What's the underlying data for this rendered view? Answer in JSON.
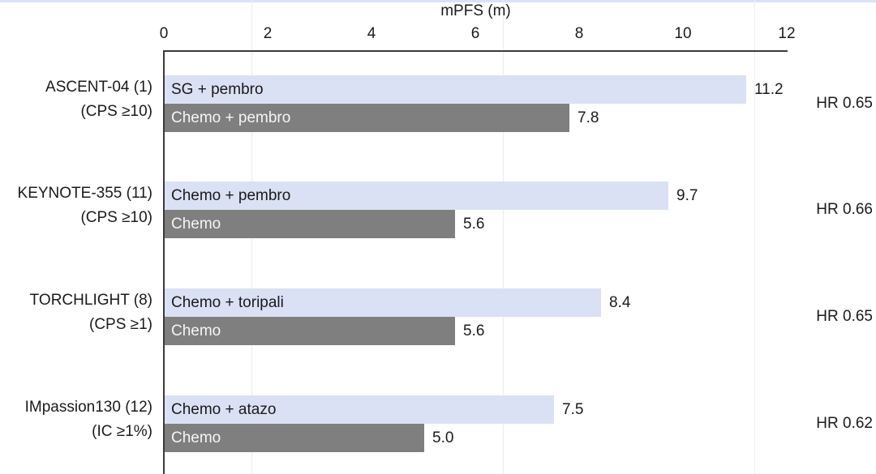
{
  "figure": {
    "title": "mPFS (m)"
  },
  "chart_data": {
    "type": "bar",
    "orientation": "horizontal",
    "title": "mPFS (m)",
    "xlabel": "mPFS (m)",
    "xlim": [
      0,
      12
    ],
    "ticks": [
      0,
      2,
      4,
      6,
      8,
      10,
      12
    ],
    "grid": "off",
    "legend": "none",
    "bar_colors": {
      "highlight": "#dbe1f4",
      "comparator": "#7f7f7f"
    },
    "groups": [
      {
        "trial": "ASCENT-04 (1)",
        "population": "(CPS ≥10)",
        "hr_label": "HR 0.65",
        "bars": [
          {
            "label": "SG + pembro",
            "value": 11.2,
            "value_label": "11.2",
            "role": "highlight"
          },
          {
            "label": "Chemo + pembro",
            "value": 7.8,
            "value_label": "7.8",
            "role": "comparator"
          }
        ]
      },
      {
        "trial": "KEYNOTE-355 (11)",
        "population": "(CPS ≥10)",
        "hr_label": "HR 0.66",
        "bars": [
          {
            "label": "Chemo + pembro",
            "value": 9.7,
            "value_label": "9.7",
            "role": "highlight"
          },
          {
            "label": "Chemo",
            "value": 5.6,
            "value_label": "5.6",
            "role": "comparator"
          }
        ]
      },
      {
        "trial": "TORCHLIGHT (8)",
        "population": "(CPS ≥1)",
        "hr_label": "HR 0.65",
        "bars": [
          {
            "label": "Chemo + toripali",
            "value": 8.4,
            "value_label": "8.4",
            "role": "highlight"
          },
          {
            "label": "Chemo",
            "value": 5.6,
            "value_label": "5.6",
            "role": "comparator"
          }
        ]
      },
      {
        "trial": "IMpassion130 (12)",
        "population": "(IC ≥1%)",
        "hr_label": "HR 0.62",
        "bars": [
          {
            "label": "Chemo + atazo",
            "value": 7.5,
            "value_label": "7.5",
            "role": "highlight"
          },
          {
            "label": "Chemo",
            "value": 5.0,
            "value_label": "5.0",
            "role": "comparator"
          }
        ]
      }
    ]
  }
}
